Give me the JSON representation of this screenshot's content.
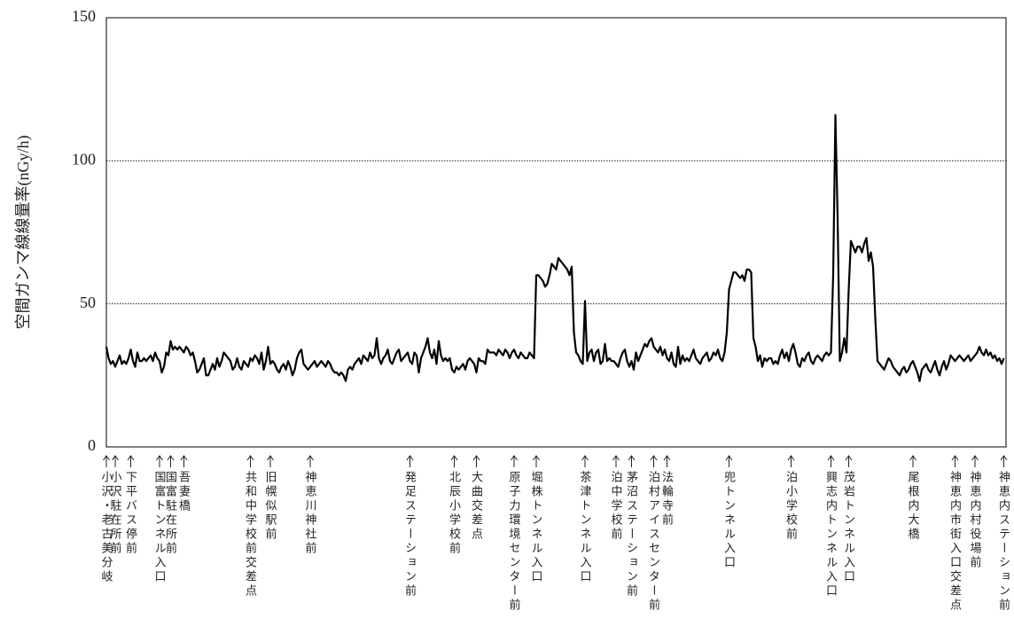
{
  "chart_data": {
    "type": "line",
    "y_label": "空間ガンマ線線量率(nGy/h)",
    "ylim": [
      0,
      150
    ],
    "yticks": [
      0,
      50,
      100,
      150
    ],
    "grid": true,
    "color": "#000000",
    "values": [
      35,
      31,
      29,
      30,
      28,
      30,
      32,
      29,
      30,
      29,
      31,
      34,
      30,
      28,
      33,
      30,
      30,
      31,
      30,
      31,
      32,
      30,
      33,
      31,
      30,
      26,
      28,
      33,
      32,
      37,
      34,
      35,
      34,
      35,
      34,
      33,
      35,
      34,
      32,
      33,
      30,
      26,
      27,
      29,
      31,
      25,
      25,
      27,
      29,
      27,
      31,
      28,
      30,
      33,
      32,
      31,
      30,
      27,
      28,
      31,
      28,
      27,
      30,
      29,
      28,
      31,
      30,
      32,
      31,
      29,
      33,
      27,
      30,
      35,
      29,
      30,
      29,
      27,
      26,
      28,
      29,
      27,
      30,
      28,
      25,
      27,
      31,
      33,
      34,
      29,
      28,
      27,
      28,
      29,
      30,
      28,
      29,
      30,
      29,
      28,
      30,
      29,
      27,
      26,
      26,
      25,
      26,
      25,
      23,
      27,
      28,
      27,
      29,
      30,
      31,
      29,
      32,
      31,
      30,
      33,
      31,
      32,
      38,
      31,
      29,
      31,
      32,
      34,
      30,
      29,
      31,
      33,
      34,
      30,
      31,
      32,
      33,
      30,
      29,
      33,
      32,
      26,
      31,
      33,
      35,
      38,
      33,
      31,
      34,
      29,
      37,
      32,
      30,
      31,
      30,
      31,
      27,
      26,
      28,
      27,
      28,
      29,
      27,
      30,
      31,
      30,
      29,
      26,
      31,
      30,
      30,
      29,
      34,
      33,
      33,
      33,
      32,
      34,
      33,
      32,
      34,
      33,
      31,
      33,
      34,
      32,
      31,
      33,
      32,
      31,
      31,
      33,
      32,
      31,
      60,
      60,
      59,
      58,
      56,
      57,
      60,
      64,
      63,
      62,
      66,
      65,
      64,
      63,
      62,
      60,
      63,
      40,
      33,
      32,
      30,
      29,
      51,
      30,
      33,
      34,
      30,
      33,
      34,
      29,
      30,
      36,
      30,
      31,
      30,
      30,
      29,
      28,
      31,
      33,
      34,
      30,
      28,
      30,
      27,
      33,
      30,
      32,
      34,
      36,
      35,
      37,
      38,
      35,
      34,
      33,
      35,
      32,
      34,
      31,
      30,
      33,
      29,
      28,
      35,
      29,
      32,
      30,
      31,
      30,
      32,
      34,
      31,
      30,
      29,
      31,
      32,
      33,
      30,
      31,
      33,
      32,
      34,
      31,
      30,
      33,
      40,
      55,
      58,
      61,
      61,
      60,
      59,
      60,
      58,
      62,
      62,
      61,
      38,
      35,
      30,
      32,
      28,
      31,
      30,
      31,
      31,
      29,
      30,
      29,
      32,
      34,
      31,
      33,
      30,
      34,
      36,
      33,
      29,
      28,
      31,
      30,
      32,
      33,
      30,
      29,
      31,
      32,
      31,
      30,
      32,
      33,
      32,
      33,
      60,
      116,
      80,
      30,
      33,
      38,
      33,
      55,
      72,
      70,
      68,
      70,
      70,
      68,
      71,
      73,
      65,
      68,
      63,
      45,
      30,
      29,
      28,
      27,
      29,
      31,
      30,
      28,
      27,
      26,
      25,
      27,
      28,
      26,
      27,
      29,
      30,
      28,
      26,
      23,
      27,
      28,
      29,
      27,
      26,
      28,
      30,
      27,
      25,
      28,
      30,
      27,
      29,
      32,
      31,
      30,
      31,
      32,
      31,
      30,
      31,
      32,
      30,
      31,
      32,
      33,
      35,
      33,
      32,
      34,
      32,
      33,
      31,
      32,
      30,
      31,
      29,
      31
    ],
    "categories": [
      "小沢・老古美分岐",
      null,
      null,
      null,
      "小沢駐在所前",
      null,
      null,
      null,
      null,
      null,
      null,
      "下平バス停前",
      null,
      null,
      null,
      null,
      null,
      null,
      null,
      null,
      null,
      null,
      null,
      null,
      "国富トンネル入口",
      null,
      null,
      null,
      null,
      "国富駐在所前",
      null,
      null,
      null,
      null,
      null,
      "吾妻橋",
      null,
      null,
      null,
      null,
      null,
      null,
      null,
      null,
      null,
      null,
      null,
      null,
      null,
      null,
      null,
      null,
      null,
      null,
      null,
      null,
      null,
      null,
      null,
      null,
      null,
      null,
      null,
      null,
      null,
      "共和中学校前交差点",
      null,
      null,
      null,
      null,
      null,
      null,
      null,
      null,
      "旧幌似駅前",
      null,
      null,
      null,
      null,
      null,
      null,
      null,
      null,
      null,
      null,
      null,
      null,
      null,
      null,
      null,
      null,
      null,
      "神恵川神社前",
      null,
      null,
      null,
      null,
      null,
      null,
      null,
      null,
      null,
      null,
      null,
      null,
      null,
      null,
      null,
      null,
      null,
      null,
      null,
      null,
      null,
      null,
      null,
      null,
      null,
      null,
      null,
      null,
      null,
      null,
      null,
      null,
      null,
      null,
      null,
      null,
      null,
      null,
      null,
      null,
      null,
      null,
      null,
      null,
      "発足ステーション前",
      null,
      null,
      null,
      null,
      null,
      null,
      null,
      null,
      null,
      null,
      null,
      null,
      null,
      null,
      null,
      null,
      null,
      null,
      null,
      "北辰小学校前",
      null,
      null,
      null,
      null,
      null,
      null,
      null,
      null,
      null,
      "大曲交差点",
      null,
      null,
      null,
      null,
      null,
      null,
      null,
      null,
      null,
      null,
      null,
      null,
      null,
      null,
      null,
      null,
      "原子力環境センター前",
      null,
      null,
      null,
      null,
      null,
      null,
      null,
      null,
      null,
      "堀株トンネル入口",
      null,
      null,
      null,
      null,
      null,
      null,
      null,
      null,
      null,
      null,
      null,
      null,
      null,
      null,
      null,
      null,
      null,
      null,
      null,
      null,
      null,
      "茶津トンネル入口",
      null,
      null,
      null,
      null,
      null,
      null,
      null,
      null,
      null,
      null,
      null,
      null,
      null,
      "泊中学校前",
      null,
      null,
      null,
      null,
      null,
      null,
      "茅沼ステーション前",
      null,
      null,
      null,
      null,
      null,
      null,
      null,
      null,
      null,
      "泊村アイスセンター前",
      null,
      null,
      null,
      null,
      null,
      "法輪寺前",
      null,
      null,
      null,
      null,
      null,
      null,
      null,
      null,
      null,
      null,
      null,
      null,
      null,
      null,
      null,
      null,
      null,
      null,
      null,
      null,
      null,
      null,
      null,
      null,
      null,
      null,
      null,
      "兜トンネル入口",
      null,
      null,
      null,
      null,
      null,
      null,
      null,
      null,
      null,
      null,
      null,
      null,
      null,
      null,
      null,
      null,
      null,
      null,
      null,
      null,
      null,
      null,
      null,
      null,
      null,
      null,
      null,
      "泊小学校前",
      null,
      null,
      null,
      null,
      null,
      null,
      null,
      null,
      null,
      null,
      null,
      null,
      null,
      null,
      null,
      null,
      null,
      "興志内トンネル入口",
      null,
      null,
      null,
      null,
      null,
      null,
      null,
      "茂岩トンネル入口",
      null,
      null,
      null,
      null,
      null,
      null,
      null,
      null,
      null,
      null,
      null,
      null,
      null,
      null,
      null,
      null,
      null,
      null,
      null,
      null,
      null,
      null,
      null,
      null,
      null,
      null,
      null,
      null,
      "尾根内大橋",
      null,
      null,
      null,
      null,
      null,
      null,
      null,
      null,
      null,
      null,
      null,
      null,
      null,
      null,
      null,
      null,
      null,
      null,
      "神恵内市街入口交差点",
      null,
      null,
      null,
      null,
      null,
      null,
      null,
      null,
      "神恵内村役場前",
      null,
      null,
      null,
      null,
      null,
      null,
      null,
      null,
      null,
      null,
      null,
      null,
      "神恵内ステーション前"
    ]
  }
}
